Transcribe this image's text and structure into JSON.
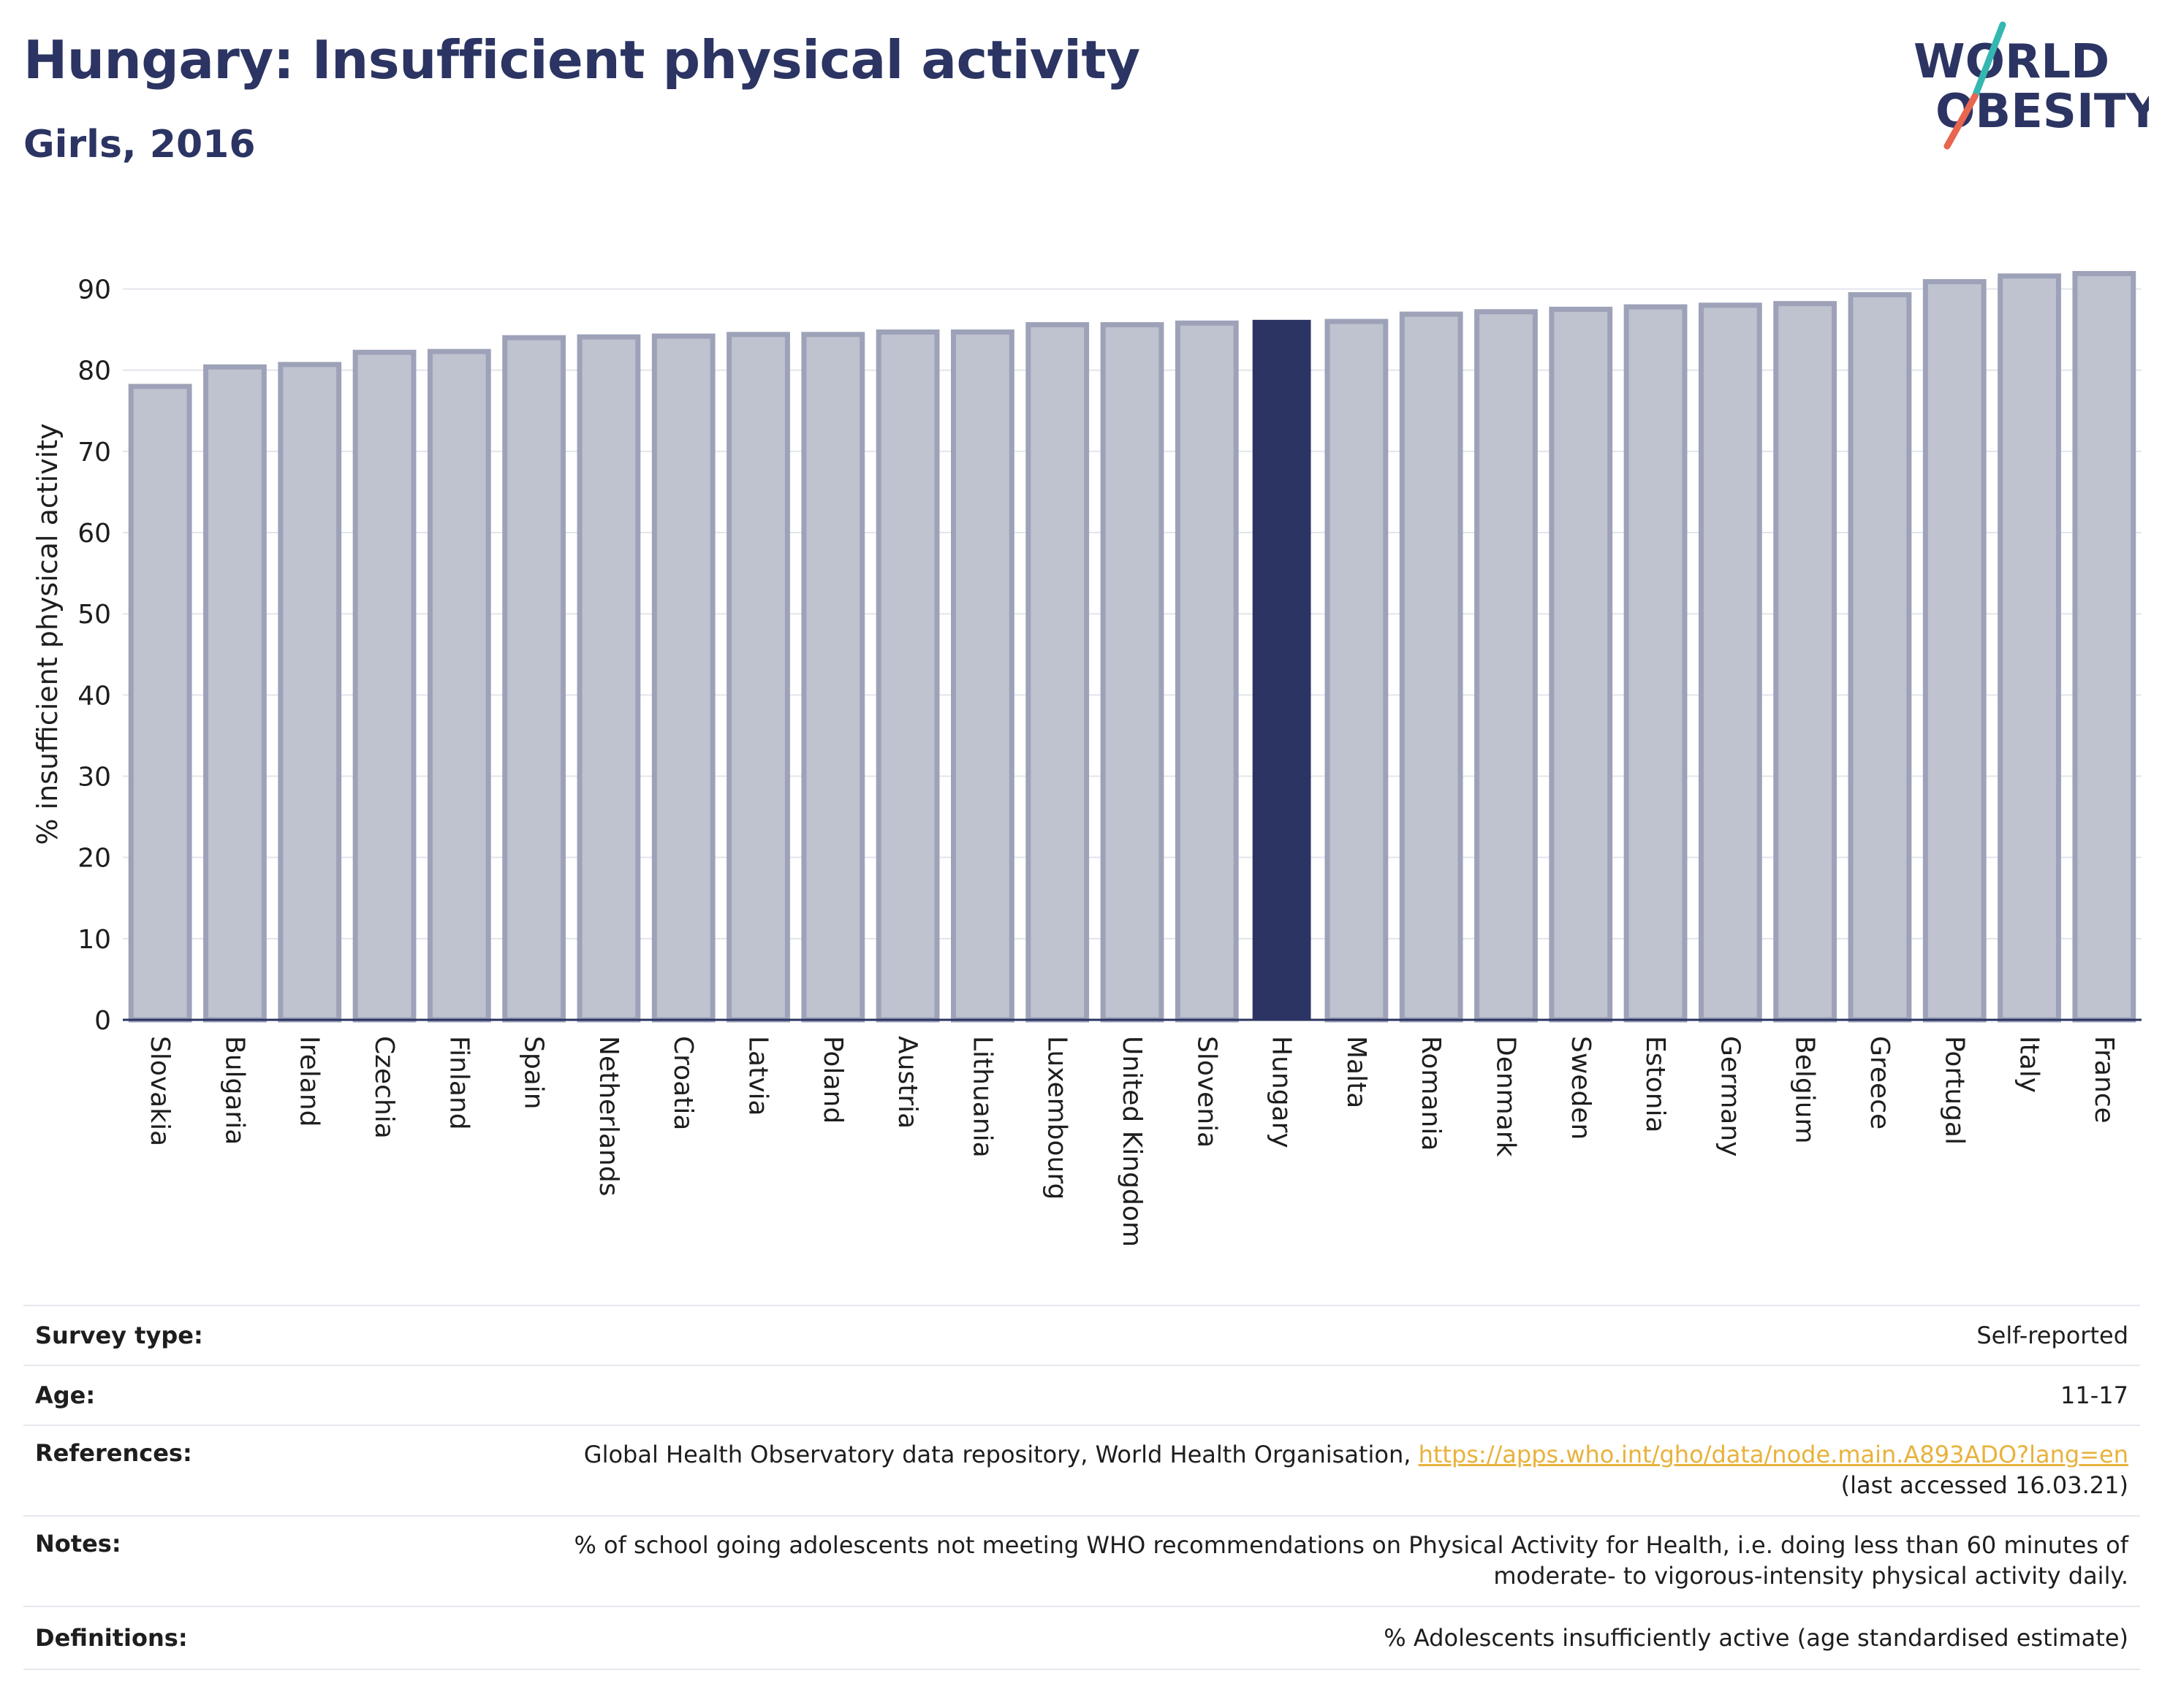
{
  "header": {
    "title": "Hungary: Insufficient physical activity",
    "subtitle": "Girls, 2016"
  },
  "logo": {
    "line1": "WORLD",
    "line2": "OBESITY"
  },
  "chart_data": {
    "type": "bar",
    "ylabel": "% insufficient physical activity",
    "ylim": [
      0,
      95
    ],
    "yticks": [
      0,
      10,
      20,
      30,
      40,
      50,
      60,
      70,
      80,
      90
    ],
    "grid": true,
    "highlight": "Hungary",
    "categories": [
      "Slovakia",
      "Bulgaria",
      "Ireland",
      "Czechia",
      "Finland",
      "Spain",
      "Netherlands",
      "Croatia",
      "Latvia",
      "Poland",
      "Austria",
      "Lithuania",
      "Luxembourg",
      "United Kingdom",
      "Slovenia",
      "Hungary",
      "Malta",
      "Romania",
      "Denmark",
      "Sweden",
      "Estonia",
      "Germany",
      "Belgium",
      "Greece",
      "Portugal",
      "Italy",
      "France"
    ],
    "values": [
      78.0,
      80.4,
      80.7,
      82.2,
      82.3,
      84.0,
      84.1,
      84.2,
      84.4,
      84.4,
      84.7,
      84.7,
      85.6,
      85.6,
      85.8,
      86.2,
      86.0,
      86.9,
      87.2,
      87.5,
      87.8,
      88.0,
      88.2,
      89.3,
      90.9,
      91.6,
      91.9
    ]
  },
  "colors": {
    "bar": "#bfc2cf",
    "bar_edge": "#9da2b8",
    "highlight": "#2b3462",
    "logo_teal": "#35b7b1",
    "logo_coral": "#e8654f",
    "link": "#e8b23c"
  },
  "meta": {
    "survey_label": "Survey type:",
    "survey_value": "Self-reported",
    "age_label": "Age:",
    "age_value": "11-17",
    "references_label": "References:",
    "references_text": "Global Health Observatory data repository, World Health Organisation,",
    "references_link": "https://apps.who.int/gho/data/node.main.A893ADO?lang=en",
    "references_accessed": "(last accessed 16.03.21)",
    "notes_label": "Notes:",
    "notes_line1": "% of school going adolescents not meeting WHO recommendations on Physical Activity for Health, i.e. doing less than 60 minutes of",
    "notes_line2": "moderate- to vigorous-intensity physical activity daily.",
    "definitions_label": "Definitions:",
    "definitions_value": "% Adolescents insufficiently active (age standardised estimate)"
  }
}
